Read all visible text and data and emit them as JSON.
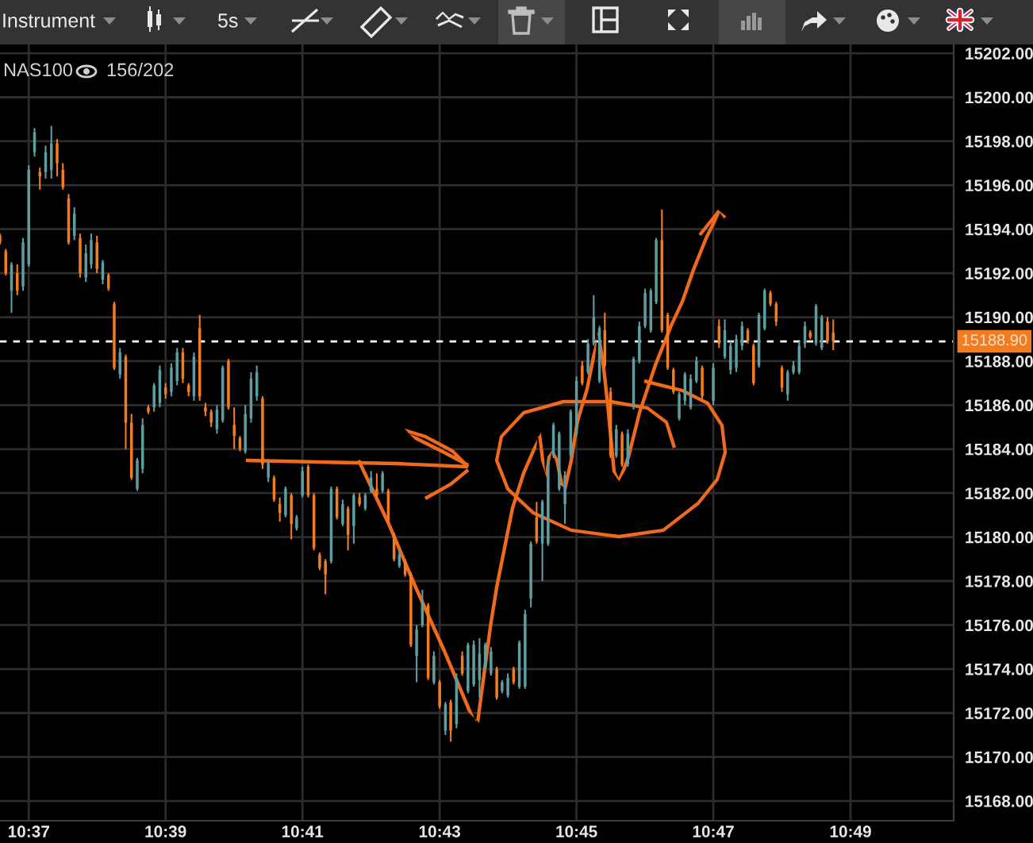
{
  "chart_data": {
    "type": "candlestick",
    "title": "NAS100",
    "subtitle": "156/202",
    "annotations": [
      "Instrument",
      "5s"
    ],
    "x": [
      10.6097,
      10.6111,
      10.6125,
      10.6139,
      10.6153,
      10.6167,
      10.6181,
      10.6194,
      10.6208,
      10.6222,
      10.6236,
      10.625,
      10.6264,
      10.6278,
      10.6292,
      10.6306,
      10.6319,
      10.6333,
      10.6347,
      10.6361,
      10.6375,
      10.6389,
      10.6403,
      10.6417,
      10.6431,
      10.6444,
      10.6458,
      10.6472,
      10.6486,
      10.65,
      10.6514,
      10.6528,
      10.6542,
      10.6556,
      10.6569,
      10.6583,
      10.6597,
      10.6611,
      10.6625,
      10.6639,
      10.6653,
      10.6667,
      10.6681,
      10.6694,
      10.6708,
      10.6722,
      10.6736,
      10.675,
      10.6764,
      10.6778,
      10.6792,
      10.6806,
      10.6819,
      10.6833,
      10.6847,
      10.6861,
      10.6875,
      10.6889,
      10.6903,
      10.6917,
      10.6931,
      10.6944,
      10.6958,
      10.6972,
      10.6986,
      10.7,
      10.7014,
      10.7028,
      10.7042,
      10.7056,
      10.7069,
      10.7083,
      10.7097,
      10.7111,
      10.7125,
      10.7139,
      10.7153,
      10.7167,
      10.7181,
      10.7194,
      10.7208,
      10.7222,
      10.7236,
      10.725,
      10.7264,
      10.7278,
      10.7292,
      10.7306,
      10.7319,
      10.7333,
      10.7347,
      10.7361,
      10.7375,
      10.7389,
      10.7403,
      10.7417,
      10.7431,
      10.7444,
      10.7458,
      10.7472,
      10.7486,
      10.75,
      10.7514,
      10.7528,
      10.7542,
      10.7556,
      10.7569,
      10.7583,
      10.7597,
      10.7611,
      10.7625,
      10.7639,
      10.7653,
      10.7667,
      10.7681,
      10.7694,
      10.7708,
      10.7722,
      10.7736,
      10.775,
      10.7764,
      10.7778,
      10.7792,
      10.7806,
      10.7833,
      10.7847,
      10.7861,
      10.7875,
      10.7889,
      10.7903,
      10.7917,
      10.7931,
      10.7944,
      10.7958,
      10.7972,
      10.7986,
      10.8,
      10.8014,
      10.8028,
      10.8042,
      10.8056,
      10.8069,
      10.8083,
      10.8097,
      10.8111,
      10.8125
    ],
    "ohlc": [
      [
        15193.7,
        15193.8,
        15193.3,
        15193.4
      ],
      [
        15193.0,
        15193.1,
        15191.9,
        15192.0
      ],
      [
        15191.2,
        15192.5,
        15190.2,
        15192.4
      ],
      [
        15192.0,
        15192.4,
        15191.0,
        15191.2
      ],
      [
        15191.4,
        15193.6,
        15191.2,
        15193.4
      ],
      [
        15192.4,
        15196.9,
        15192.3,
        15196.7
      ],
      [
        15197.5,
        15198.6,
        15197.3,
        15198.4
      ],
      [
        15196.6,
        15196.8,
        15195.8,
        15196.4
      ],
      [
        15196.6,
        15197.8,
        15196.3,
        15197.5
      ],
      [
        15196.7,
        15198.7,
        15196.3,
        15197.9
      ],
      [
        15197.9,
        15198.1,
        15196.4,
        15197.0
      ],
      [
        15196.7,
        15197.0,
        15195.8,
        15195.9
      ],
      [
        15195.4,
        15195.6,
        15193.3,
        15193.4
      ],
      [
        15193.7,
        15195.0,
        15193.5,
        15194.7
      ],
      [
        15193.6,
        15193.8,
        15191.8,
        15192.0
      ],
      [
        15191.8,
        15193.3,
        15191.6,
        15192.9
      ],
      [
        15192.4,
        15193.8,
        15192.2,
        15193.5
      ],
      [
        15193.4,
        15193.7,
        15192.0,
        15192.2
      ],
      [
        15191.7,
        15192.6,
        15191.5,
        15192.5
      ],
      [
        15191.9,
        15192.0,
        15191.2,
        15191.3
      ],
      [
        15190.6,
        15190.7,
        15187.6,
        15187.7
      ],
      [
        15187.4,
        15188.6,
        15187.2,
        15188.4
      ],
      [
        15188.2,
        15188.3,
        15184.0,
        15185.2
      ],
      [
        15185.2,
        15185.6,
        15182.6,
        15182.7
      ],
      [
        15182.2,
        15183.6,
        15182.1,
        15183.5
      ],
      [
        15183.1,
        15185.4,
        15182.9,
        15185.1
      ],
      [
        15185.9,
        15186.0,
        15185.6,
        15185.7
      ],
      [
        15185.9,
        15187.0,
        15185.7,
        15186.9
      ],
      [
        15186.1,
        15187.8,
        15185.9,
        15187.6
      ],
      [
        15186.8,
        15187.0,
        15186.3,
        15186.5
      ],
      [
        15186.6,
        15187.9,
        15186.4,
        15187.7
      ],
      [
        15187.1,
        15188.6,
        15186.9,
        15188.4
      ],
      [
        15188.4,
        15188.6,
        15187.0,
        15187.2
      ],
      [
        15186.9,
        15187.0,
        15186.4,
        15186.6
      ],
      [
        15186.4,
        15188.4,
        15186.2,
        15188.2
      ],
      [
        15189.5,
        15190.1,
        15186.2,
        15186.4
      ],
      [
        15185.9,
        15186.1,
        15185.5,
        15185.7
      ],
      [
        15185.7,
        15185.8,
        15185.0,
        15185.2
      ],
      [
        15184.9,
        15186.0,
        15184.7,
        15185.8
      ],
      [
        15185.3,
        15187.8,
        15185.2,
        15187.7
      ],
      [
        15188.0,
        15188.1,
        15185.8,
        15185.9
      ],
      [
        15185.1,
        15185.9,
        15184.0,
        15184.6
      ],
      [
        15184.5,
        15184.6,
        15183.9,
        15184.0
      ],
      [
        15183.9,
        15186.0,
        15183.8,
        15185.6
      ],
      [
        15185.4,
        15187.5,
        15185.2,
        15187.2
      ],
      [
        15186.4,
        15187.8,
        15186.2,
        15187.5
      ],
      [
        15186.3,
        15186.4,
        15183.1,
        15183.3
      ],
      [
        15182.7,
        15183.5,
        15182.5,
        15183.4
      ],
      [
        15182.7,
        15182.8,
        15181.6,
        15181.7
      ],
      [
        15181.5,
        15181.8,
        15180.7,
        15181.1
      ],
      [
        15181.0,
        15182.3,
        15180.9,
        15182.2
      ],
      [
        15181.9,
        15182.0,
        15179.9,
        15180.6
      ],
      [
        15180.4,
        15181.0,
        15180.3,
        15180.9
      ],
      [
        15181.9,
        15183.2,
        15181.8,
        15183.0
      ],
      [
        15183.2,
        15183.3,
        15181.8,
        15181.9
      ],
      [
        15181.9,
        15182.0,
        15179.4,
        15179.5
      ],
      [
        15179.2,
        15179.3,
        15178.5,
        15178.6
      ],
      [
        15178.9,
        15179.0,
        15177.4,
        15178.3
      ],
      [
        15178.9,
        15182.3,
        15178.8,
        15182.2
      ],
      [
        15182.2,
        15182.3,
        15180.8,
        15180.9
      ],
      [
        15180.6,
        15181.7,
        15180.5,
        15181.5
      ],
      [
        15181.3,
        15181.4,
        15179.4,
        15180.1
      ],
      [
        15180.5,
        15182.0,
        15179.7,
        15181.9
      ],
      [
        15181.8,
        15182.0,
        15181.4,
        15181.5
      ],
      [
        15181.3,
        15182.0,
        15181.2,
        15181.9
      ],
      [
        15182.1,
        15183.0,
        15182.0,
        15182.7
      ],
      [
        15182.2,
        15182.9,
        15181.8,
        15181.9
      ],
      [
        15182.1,
        15183.0,
        15182.0,
        15182.9
      ],
      [
        15182.1,
        15182.2,
        15180.6,
        15180.7
      ],
      [
        15180.1,
        15180.2,
        15178.9,
        15179.0
      ],
      [
        15178.7,
        15179.4,
        15178.6,
        15179.2
      ],
      [
        15178.9,
        15179.0,
        15178.2,
        15178.3
      ],
      [
        15178.3,
        15178.4,
        15175.0,
        15175.1
      ],
      [
        15174.6,
        15176.0,
        15173.4,
        15175.8
      ],
      [
        15176.0,
        15177.6,
        15175.9,
        15177.0
      ],
      [
        15176.9,
        15177.0,
        15173.5,
        15173.6
      ],
      [
        15173.4,
        15174.8,
        15173.3,
        15174.6
      ],
      [
        15173.4,
        15173.5,
        15172.2,
        15172.3
      ],
      [
        15171.2,
        15172.5,
        15171.0,
        15172.4
      ],
      [
        15172.5,
        15172.6,
        15170.7,
        15171.2
      ],
      [
        15171.5,
        15173.8,
        15171.3,
        15173.6
      ],
      [
        15174.6,
        15174.8,
        15173.7,
        15173.8
      ],
      [
        15173.0,
        15175.2,
        15172.9,
        15175.1
      ],
      [
        15173.3,
        15175.3,
        15173.2,
        15175.1
      ],
      [
        15173.5,
        15175.4,
        15172.7,
        15174.7
      ],
      [
        15174.1,
        15175.2,
        15174.0,
        15175.1
      ],
      [
        15173.8,
        15175.0,
        15173.7,
        15174.8
      ],
      [
        15174.0,
        15174.1,
        15172.6,
        15172.7
      ],
      [
        15173.0,
        15173.5,
        15172.9,
        15173.4
      ],
      [
        15172.8,
        15173.8,
        15172.7,
        15173.6
      ],
      [
        15174.0,
        15174.1,
        15173.3,
        15173.4
      ],
      [
        15173.2,
        15175.3,
        15173.1,
        15175.2
      ],
      [
        15173.2,
        15176.7,
        15173.1,
        15176.5
      ],
      [
        15177.2,
        15179.8,
        15176.8,
        15179.7
      ],
      [
        15180.9,
        15181.6,
        15179.7,
        15179.8
      ],
      [
        15179.7,
        15181.7,
        15178.0,
        15181.6
      ],
      [
        15179.7,
        15183.5,
        15179.6,
        15183.4
      ],
      [
        15183.7,
        15185.2,
        15183.6,
        15185.1
      ],
      [
        15182.2,
        15184.8,
        15182.1,
        15184.7
      ],
      [
        15181.5,
        15183.0,
        15180.6,
        15182.8
      ],
      [
        15183.7,
        15185.8,
        15183.6,
        15185.7
      ],
      [
        15184.7,
        15187.3,
        15184.6,
        15187.1
      ],
      [
        15187.8,
        15188.0,
        15186.9,
        15187.0
      ],
      [
        15187.5,
        15189.0,
        15187.4,
        15188.8
      ],
      [
        15188.8,
        15191.0,
        15188.7,
        15190.0
      ],
      [
        15187.1,
        15189.6,
        15187.0,
        15189.5
      ],
      [
        15189.4,
        15190.2,
        15187.7,
        15187.8
      ],
      [
        15186.6,
        15186.8,
        15183.6,
        15183.7
      ],
      [
        15183.7,
        15185.1,
        15183.6,
        15184.9
      ],
      [
        15184.7,
        15184.8,
        15183.2,
        15183.3
      ],
      [
        15183.3,
        15184.9,
        15183.2,
        15184.7
      ],
      [
        15185.9,
        15188.2,
        15185.8,
        15188.1
      ],
      [
        15188.0,
        15189.8,
        15187.9,
        15189.6
      ],
      [
        15189.6,
        15191.3,
        15189.5,
        15191.1
      ],
      [
        15189.4,
        15191.3,
        15189.3,
        15191.2
      ],
      [
        15190.7,
        15193.6,
        15190.6,
        15193.5
      ],
      [
        15193.5,
        15194.9,
        15189.3,
        15189.4
      ],
      [
        15190.1,
        15190.2,
        15187.6,
        15187.7
      ],
      [
        15187.6,
        15187.7,
        15186.5,
        15186.6
      ],
      [
        15185.4,
        15186.6,
        15185.3,
        15186.5
      ],
      [
        15186.2,
        15187.5,
        15186.0,
        15187.4
      ],
      [
        15185.9,
        15187.4,
        15185.8,
        15187.2
      ],
      [
        15187.1,
        15188.2,
        15187.0,
        15188.0
      ],
      [
        15187.7,
        15187.8,
        15186.3,
        15186.4
      ],
      [
        15186.2,
        15187.9,
        15186.0,
        15187.7
      ],
      [
        15189.6,
        15189.9,
        15188.6,
        15188.8
      ],
      [
        15188.2,
        15189.9,
        15188.1,
        15189.4
      ],
      [
        15187.6,
        15188.9,
        15187.4,
        15188.7
      ],
      [
        15187.7,
        15189.2,
        15187.5,
        15189.0
      ],
      [
        15188.7,
        15189.8,
        15188.5,
        15189.6
      ],
      [
        15189.4,
        15189.5,
        15188.8,
        15188.9
      ],
      [
        15188.7,
        15188.8,
        15186.9,
        15187.0
      ],
      [
        15187.8,
        15190.2,
        15187.7,
        15190.1
      ],
      [
        15189.5,
        15191.3,
        15189.4,
        15191.2
      ],
      [
        15191.1,
        15191.2,
        15190.5,
        15190.6
      ],
      [
        15190.6,
        15190.7,
        15189.6,
        15189.8
      ],
      [
        15187.7,
        15187.8,
        15186.6,
        15186.8
      ],
      [
        15186.5,
        15187.6,
        15186.2,
        15187.5
      ],
      [
        15187.5,
        15188.0,
        15187.4,
        15187.8
      ],
      [
        15187.5,
        15188.9,
        15187.4,
        15188.7
      ],
      [
        15188.8,
        15189.8,
        15188.6,
        15189.6
      ],
      [
        15189.3,
        15189.4,
        15189.0,
        15189.1
      ],
      [
        15188.8,
        15190.6,
        15188.7,
        15190.5
      ],
      [
        15188.6,
        15190.1,
        15188.5,
        15190.0
      ],
      [
        15189.8,
        15190.0,
        15188.8,
        15188.9
      ],
      [
        15189.3,
        15189.9,
        15188.5,
        15188.9
      ]
    ],
    "colors": [
      "#f47c20",
      "#f47c20",
      "#5f9ea0",
      "#f47c20",
      "#5f9ea0",
      "#5f9ea0",
      "#5f9ea0",
      "#f47c20",
      "#5f9ea0",
      "#5f9ea0",
      "#f47c20",
      "#f47c20",
      "#f47c20",
      "#5f9ea0",
      "#f47c20",
      "#5f9ea0",
      "#5f9ea0",
      "#f47c20",
      "#5f9ea0",
      "#f47c20",
      "#f47c20",
      "#5f9ea0",
      "#f47c20",
      "#f47c20",
      "#5f9ea0",
      "#5f9ea0",
      "#f47c20",
      "#5f9ea0",
      "#5f9ea0",
      "#f47c20",
      "#5f9ea0",
      "#5f9ea0",
      "#f47c20",
      "#f47c20",
      "#5f9ea0",
      "#f47c20",
      "#f47c20",
      "#f47c20",
      "#5f9ea0",
      "#5f9ea0",
      "#f47c20",
      "#f47c20",
      "#f47c20",
      "#5f9ea0",
      "#5f9ea0",
      "#5f9ea0",
      "#f47c20",
      "#5f9ea0",
      "#f47c20",
      "#f47c20",
      "#5f9ea0",
      "#f47c20",
      "#5f9ea0",
      "#5f9ea0",
      "#f47c20",
      "#f47c20",
      "#f47c20",
      "#f47c20",
      "#5f9ea0",
      "#f47c20",
      "#5f9ea0",
      "#f47c20",
      "#5f9ea0",
      "#f47c20",
      "#5f9ea0",
      "#5f9ea0",
      "#f47c20",
      "#5f9ea0",
      "#f47c20",
      "#f47c20",
      "#5f9ea0",
      "#f47c20",
      "#f47c20",
      "#5f9ea0",
      "#5f9ea0",
      "#f47c20",
      "#5f9ea0",
      "#f47c20",
      "#5f9ea0",
      "#f47c20",
      "#5f9ea0",
      "#f47c20",
      "#5f9ea0",
      "#5f9ea0",
      "#5f9ea0",
      "#5f9ea0",
      "#5f9ea0",
      "#f47c20",
      "#5f9ea0",
      "#5f9ea0",
      "#f47c20",
      "#5f9ea0",
      "#5f9ea0",
      "#5f9ea0",
      "#f47c20",
      "#5f9ea0",
      "#5f9ea0",
      "#5f9ea0",
      "#5f9ea0",
      "#5f9ea0",
      "#5f9ea0",
      "#5f9ea0",
      "#f47c20",
      "#5f9ea0",
      "#5f9ea0",
      "#5f9ea0",
      "#f47c20",
      "#f47c20",
      "#5f9ea0",
      "#f47c20",
      "#5f9ea0",
      "#5f9ea0",
      "#5f9ea0",
      "#5f9ea0",
      "#5f9ea0",
      "#5f9ea0",
      "#f47c20",
      "#f47c20",
      "#f47c20",
      "#5f9ea0",
      "#5f9ea0",
      "#5f9ea0",
      "#5f9ea0",
      "#f47c20",
      "#5f9ea0",
      "#f47c20",
      "#5f9ea0",
      "#5f9ea0",
      "#5f9ea0",
      "#5f9ea0",
      "#f47c20",
      "#f47c20",
      "#5f9ea0",
      "#5f9ea0",
      "#f47c20",
      "#f47c20",
      "#f47c20",
      "#5f9ea0",
      "#5f9ea0",
      "#5f9ea0",
      "#5f9ea0",
      "#f47c20",
      "#5f9ea0",
      "#5f9ea0",
      "#f47c20",
      "#f47c20"
    ],
    "xlim": [
      10.6097,
      10.8418
    ],
    "ylim": [
      15167.1,
      15202.4
    ],
    "xticks": [
      {
        "value": 10.6167,
        "label": "10:37"
      },
      {
        "value": 10.65,
        "label": "10:39"
      },
      {
        "value": 10.6833,
        "label": "10:41"
      },
      {
        "value": 10.7167,
        "label": "10:43"
      },
      {
        "value": 10.75,
        "label": "10:45"
      },
      {
        "value": 10.7833,
        "label": "10:47"
      },
      {
        "value": 10.8167,
        "label": "10:49"
      }
    ],
    "yticks": [
      {
        "value": 15168,
        "label": "15168.00"
      },
      {
        "value": 15170,
        "label": "15170.00"
      },
      {
        "value": 15172,
        "label": "15172.00"
      },
      {
        "value": 15174,
        "label": "15174.00"
      },
      {
        "value": 15176,
        "label": "15176.00"
      },
      {
        "value": 15178,
        "label": "15178.00"
      },
      {
        "value": 15180,
        "label": "15180.00"
      },
      {
        "value": 15182,
        "label": "15182.00"
      },
      {
        "value": 15184,
        "label": "15184.00"
      },
      {
        "value": 15186,
        "label": "15186.00"
      },
      {
        "value": 15188,
        "label": "15188.00"
      },
      {
        "value": 15190,
        "label": "15190.00"
      },
      {
        "value": 15192,
        "label": "15192.00"
      },
      {
        "value": 15194,
        "label": "15194.00"
      },
      {
        "value": 15196,
        "label": "15196.00"
      },
      {
        "value": 15198,
        "label": "15198.00"
      },
      {
        "value": 15200,
        "label": "15200.00"
      },
      {
        "value": 15202,
        "label": "15202.00"
      }
    ],
    "grid": true,
    "ref_lines": [
      {
        "axis": "y",
        "value": 15188.9,
        "label": "15188.90",
        "color": "#ffffff",
        "line_style": "dashed"
      }
    ]
  }
}
